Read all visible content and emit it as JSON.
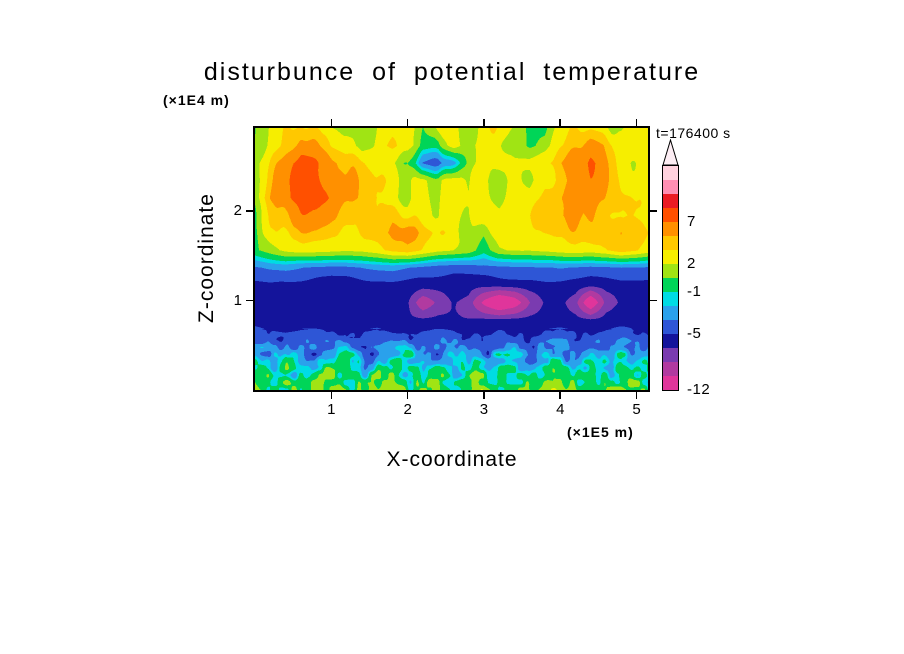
{
  "chart_data": {
    "type": "heatmap",
    "title": "disturbunce of potential temperature",
    "annotation": "t=176400 s",
    "xlabel": "X-coordinate",
    "x_unit": "(×1E5 m)",
    "ylabel": "Z-coordinate",
    "y_unit": "(×1E4 m)",
    "x_ticks": [
      1,
      2,
      3,
      4,
      5
    ],
    "y_ticks": [
      1,
      2
    ],
    "xlim": [
      0,
      5.15
    ],
    "ylim": [
      0,
      2.93
    ],
    "value_edges": [
      -10,
      -8,
      -6.5,
      -5,
      -3.5,
      -2,
      -1,
      0.5,
      2,
      3.5,
      5,
      7,
      9,
      11,
      13
    ],
    "palette": [
      "#e0359b",
      "#b13aa0",
      "#7a3bb0",
      "#14149b",
      "#2e56d6",
      "#2aa1ec",
      "#00dce4",
      "#00d558",
      "#a0e414",
      "#f6ee00",
      "#ffc800",
      "#ff9000",
      "#ff5000",
      "#eb1c24",
      "#ff8fb3",
      "#ffd2de"
    ],
    "colorbar": {
      "arrow_color": "#fdeef4",
      "labels": [
        {
          "text": "7",
          "segments_up": 12
        },
        {
          "text": "2",
          "segments_up": 9
        },
        {
          "text": "-1",
          "segments_up": 7
        },
        {
          "text": "-5",
          "segments_up": 4
        },
        {
          "text": "-12",
          "segments_up": 0
        }
      ]
    },
    "grid": {
      "x0": 0,
      "dx": 0.2,
      "nx": 27,
      "z_top": 2.93,
      "dz": 0.1953,
      "nz": 16,
      "values": [
        [
          0.3,
          2.6,
          3.0,
          3.8,
          3.2,
          2.6,
          2.4,
          1.0,
          2.4,
          3.0,
          2.6,
          0.8,
          2.6,
          2.8,
          1.2,
          2.6,
          3.0,
          2.4,
          0.6,
          0.2,
          2.6,
          3.2,
          2.8,
          2.4,
          1.0,
          2.6,
          2.8
        ],
        [
          0.6,
          2.8,
          3.8,
          5.6,
          4.6,
          3.2,
          2.6,
          0.8,
          2.2,
          3.2,
          2.4,
          0.4,
          0.2,
          3.0,
          1.6,
          2.8,
          2.4,
          1.2,
          0.2,
          1.2,
          3.0,
          4.2,
          5.6,
          4.4,
          3.0,
          2.8,
          2.5
        ],
        [
          1.2,
          3.6,
          6.2,
          7.6,
          6.8,
          5.6,
          4.4,
          3.2,
          2.2,
          1.2,
          0.2,
          -3.5,
          -4.5,
          -2.5,
          0.5,
          2.6,
          3.0,
          2.4,
          2.8,
          3.6,
          4.6,
          6.2,
          6.6,
          5.0,
          3.2,
          2.6,
          2.4
        ],
        [
          0.8,
          4.2,
          6.6,
          8.2,
          7.2,
          6.2,
          5.2,
          4.0,
          3.0,
          2.0,
          0.8,
          2.4,
          0.8,
          2.8,
          1.0,
          2.6,
          1.2,
          3.0,
          2.0,
          3.8,
          4.2,
          5.6,
          6.0,
          4.8,
          4.0,
          3.0,
          2.6
        ],
        [
          1.2,
          5.2,
          7.2,
          8.2,
          7.6,
          6.6,
          5.6,
          4.6,
          3.4,
          2.4,
          1.2,
          3.0,
          1.4,
          3.2,
          1.8,
          3.0,
          1.8,
          3.2,
          2.4,
          4.0,
          5.0,
          6.0,
          5.6,
          5.0,
          4.2,
          3.4,
          3.0
        ],
        [
          0.5,
          3.6,
          5.2,
          6.2,
          5.6,
          5.0,
          4.4,
          4.0,
          3.4,
          4.4,
          3.0,
          3.4,
          1.8,
          3.0,
          2.0,
          3.4,
          2.4,
          3.4,
          3.0,
          4.2,
          5.0,
          5.6,
          5.0,
          4.4,
          3.8,
          3.2,
          2.8
        ],
        [
          0.3,
          2.4,
          3.4,
          4.0,
          3.8,
          3.4,
          3.2,
          3.0,
          3.6,
          5.2,
          6.2,
          5.0,
          3.4,
          2.8,
          2.0,
          0.8,
          2.4,
          3.0,
          2.8,
          3.2,
          3.8,
          4.4,
          4.2,
          4.8,
          5.6,
          4.4,
          3.4
        ],
        [
          0.2,
          1.4,
          2.4,
          2.8,
          2.6,
          2.4,
          2.2,
          2.4,
          3.0,
          4.0,
          4.4,
          3.4,
          2.4,
          2.0,
          1.4,
          -0.5,
          1.8,
          2.2,
          2.0,
          2.4,
          2.8,
          3.0,
          2.8,
          3.4,
          4.4,
          3.6,
          2.6
        ],
        [
          -3.6,
          -3.2,
          -3.0,
          -3.4,
          -3.8,
          -4.0,
          -3.9,
          -3.6,
          -3.3,
          -3.1,
          -3.5,
          -3.9,
          -4.2,
          -4.4,
          -4.3,
          -4.1,
          -3.9,
          -3.7,
          -3.8,
          -3.6,
          -3.4,
          -3.7,
          -4.0,
          -3.8,
          -3.4,
          -3.6,
          -3.9
        ],
        [
          -5.3,
          -5.2,
          -5.4,
          -5.6,
          -5.8,
          -5.9,
          -5.8,
          -5.6,
          -5.5,
          -5.4,
          -5.6,
          -5.8,
          -6.0,
          -6.1,
          -6.0,
          -5.9,
          -5.8,
          -5.7,
          -5.6,
          -5.5,
          -5.6,
          -5.8,
          -6.0,
          -5.8,
          -5.5,
          -5.6,
          -5.8
        ],
        [
          -6.0,
          -6.1,
          -6.2,
          -6.1,
          -6.0,
          -6.2,
          -6.3,
          -6.2,
          -6.1,
          -6.2,
          -6.4,
          -9.5,
          -7.5,
          -6.3,
          -7.0,
          -10.5,
          -13.0,
          -11.5,
          -8.0,
          -6.4,
          -6.2,
          -7.5,
          -12.5,
          -7.5,
          -6.2,
          -6.1,
          -6.0
        ],
        [
          -5.6,
          -5.8,
          -6.0,
          -5.9,
          -6.0,
          -6.2,
          -6.1,
          -5.9,
          -6.0,
          -6.2,
          -6.3,
          -6.2,
          -6.0,
          -6.2,
          -6.4,
          -6.3,
          -6.2,
          -6.1,
          -6.0,
          -5.9,
          -6.0,
          -6.2,
          -6.3,
          -6.0,
          -5.9,
          -5.6,
          -5.8
        ],
        [
          -4.2,
          -4.6,
          -5.1,
          -4.4,
          -3.9,
          -4.6,
          -5.2,
          -4.8,
          -4.1,
          -4.7,
          -5.1,
          -4.5,
          -3.9,
          -4.3,
          -5.0,
          -4.6,
          -4.1,
          -4.8,
          -5.2,
          -4.6,
          -4.1,
          -4.5,
          -4.9,
          -4.3,
          -3.9,
          -4.6,
          -5.1
        ],
        [
          -2.1,
          -3.6,
          -1.6,
          -2.9,
          -4.1,
          -2.3,
          -1.3,
          -3.1,
          -4.3,
          -2.1,
          -1.1,
          -2.6,
          -3.9,
          -1.9,
          -2.9,
          -4.1,
          -1.6,
          -2.6,
          -3.6,
          -1.3,
          -2.3,
          -3.9,
          -1.9,
          -2.9,
          -1.3,
          -3.3,
          -2.3
        ],
        [
          0.2,
          -1.3,
          -0.4,
          -1.9,
          -0.6,
          0.1,
          -1.1,
          -2.1,
          -0.5,
          0.2,
          -1.5,
          -0.7,
          0.1,
          -1.9,
          -0.9,
          -0.1,
          -1.3,
          -0.5,
          -2.1,
          -0.7,
          0.1,
          -1.1,
          -0.4,
          -1.6,
          0.2,
          -0.9,
          -1.7
        ],
        [
          0.4,
          0.1,
          0.5,
          -0.2,
          0.3,
          0.6,
          0.0,
          -0.4,
          0.4,
          0.6,
          -0.1,
          0.2,
          0.6,
          -0.2,
          0.1,
          0.5,
          -0.3,
          0.3,
          -0.1,
          0.4,
          0.6,
          0.0,
          0.3,
          -0.2,
          0.5,
          0.1,
          -0.1
        ]
      ]
    },
    "render_hints": {
      "seed": 7,
      "speckle_zmax": 0.68,
      "speckle_amp": 1.6,
      "stripe_zmin": 1.56,
      "stripe_amp": 0.8,
      "base_amp": 0.2
    }
  }
}
